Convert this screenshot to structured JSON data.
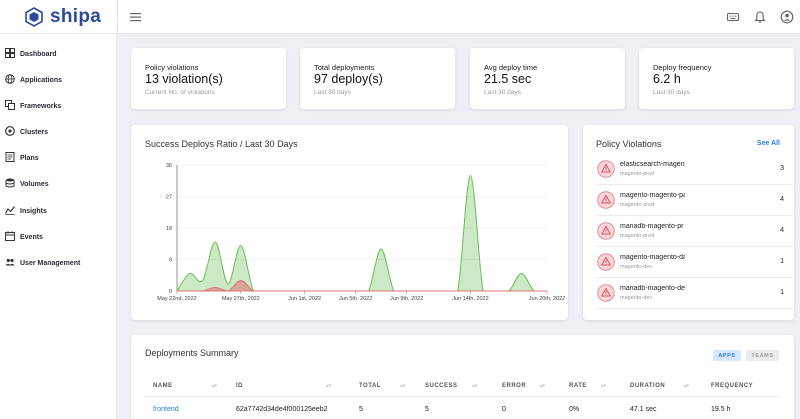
{
  "brand": {
    "name": "shipa",
    "color": "#2b4a9a"
  },
  "topbar": {
    "icons": [
      "hamburger-menu-icon",
      "keyboard-icon",
      "bell-icon",
      "account-icon"
    ]
  },
  "sidebar": {
    "items": [
      {
        "label": "Dashboard",
        "icon": "dashboard-icon"
      },
      {
        "label": "Applications",
        "icon": "globe-icon"
      },
      {
        "label": "Frameworks",
        "icon": "frameworks-icon"
      },
      {
        "label": "Clusters",
        "icon": "clusters-icon"
      },
      {
        "label": "Plans",
        "icon": "plans-icon"
      },
      {
        "label": "Volumes",
        "icon": "volumes-icon"
      },
      {
        "label": "Insights",
        "icon": "insights-icon"
      },
      {
        "label": "Events",
        "icon": "events-icon"
      },
      {
        "label": "User Management",
        "icon": "users-icon"
      }
    ]
  },
  "stats": [
    {
      "title": "Policy violations",
      "value": "13 violation(s)",
      "sub": "Current No. of violations"
    },
    {
      "title": "Total deployments",
      "value": "97 deploy(s)",
      "sub": "Last 30 days"
    },
    {
      "title": "Avg deploy time",
      "value": "21.5 sec",
      "sub": "Last 30 days"
    },
    {
      "title": "Deploy frequency",
      "value": "6.2 h",
      "sub": "Last 30 days"
    }
  ],
  "chart_data": {
    "type": "area",
    "title": "Success Deploys Ratio / Last 30 Days",
    "x": [
      "May 22nd",
      "May 23rd",
      "May 24th",
      "May 25th",
      "May 26th",
      "May 27th",
      "May 28th",
      "May 29th",
      "May 30th",
      "May 31st",
      "Jun 1st",
      "Jun 2nd",
      "Jun 3rd",
      "Jun 4th",
      "Jun 5th",
      "Jun 6th",
      "Jun 7th",
      "Jun 8th",
      "Jun 9th",
      "Jun 10th",
      "Jun 11th",
      "Jun 12th",
      "Jun 13th",
      "Jun 14th",
      "Jun 15th",
      "Jun 16th",
      "Jun 17th",
      "Jun 18th",
      "Jun 19th",
      "Jun 20th"
    ],
    "xtick_labels": [
      "May 22nd, 2022",
      "May 27th, 2022",
      "Jun 1st, 2022",
      "Jun 5th, 2022",
      "Jun 9th, 2022",
      "Jun 14th, 2022",
      "Jun 20th, 2022"
    ],
    "xtick_index": [
      0,
      5,
      10,
      14,
      18,
      23,
      29
    ],
    "yticks": [
      0,
      9,
      18,
      27,
      36
    ],
    "ylim": [
      0,
      36
    ],
    "series": [
      {
        "name": "success",
        "color": "#6bbf59",
        "values": [
          0,
          5,
          3,
          14,
          2,
          13,
          0,
          0,
          0,
          0,
          0,
          0,
          0,
          0,
          0,
          0,
          12,
          0,
          0,
          0,
          0,
          0,
          0,
          33,
          0,
          0,
          0,
          5,
          0,
          0
        ]
      },
      {
        "name": "failed",
        "color": "#e07070",
        "values": [
          0,
          0,
          0,
          1,
          0,
          3,
          0,
          0,
          0,
          0,
          0,
          0,
          0,
          0,
          0,
          0,
          0,
          0,
          0,
          0,
          0,
          0,
          0,
          0,
          0,
          0,
          0,
          0,
          0,
          0
        ]
      }
    ]
  },
  "policy_violations": {
    "title": "Policy Violations",
    "see_all": "See All",
    "items": [
      {
        "name": "elasticsearch-magen",
        "namespace": "magento-prod",
        "count": "3"
      },
      {
        "name": "magento-magento-pa",
        "namespace": "magento-prod",
        "count": "4"
      },
      {
        "name": "mariadb-magento-pr",
        "namespace": "magento-prod",
        "count": "4"
      },
      {
        "name": "magento-magento-da",
        "namespace": "magento-dev",
        "count": "1"
      },
      {
        "name": "mariadb-magento-de",
        "namespace": "magento-dev",
        "count": "1"
      }
    ]
  },
  "deployments": {
    "title": "Deployments Summary",
    "tabs": {
      "apps": "APPS",
      "teams": "TEAMS"
    },
    "columns": [
      "NAME",
      "ID",
      "TOTAL",
      "SUCCESS",
      "ERROR",
      "RATE",
      "DURATION",
      "FREQUENCY"
    ],
    "rows": [
      {
        "name": "frontend",
        "id": "62a7742d34de4f000125eeb2",
        "total": "5",
        "success": "5",
        "error": "0",
        "rate": "0%",
        "duration": "47.1 sec",
        "frequency": "19.5 h"
      }
    ]
  }
}
